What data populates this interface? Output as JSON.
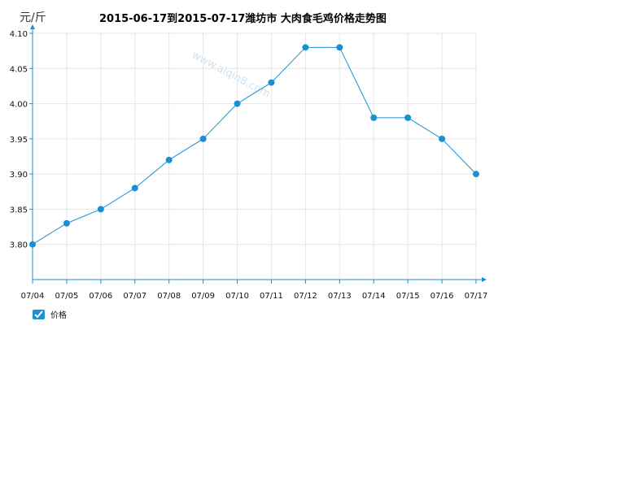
{
  "chart_data": {
    "type": "line",
    "title": "2015-06-17到2015-07-17潍坊市  大肉食毛鸡价格走势图",
    "ylabel": "元/斤",
    "xlabel": "",
    "categories": [
      "07/04",
      "07/05",
      "07/06",
      "07/07",
      "07/08",
      "07/09",
      "07/10",
      "07/11",
      "07/12",
      "07/13",
      "07/14",
      "07/15",
      "07/16",
      "07/17"
    ],
    "series": [
      {
        "name": "价格",
        "values": [
          3.8,
          3.83,
          3.85,
          3.88,
          3.92,
          3.95,
          4.0,
          4.03,
          4.08,
          4.08,
          3.98,
          3.98,
          3.95,
          3.9
        ]
      }
    ],
    "yticks": [
      "3.80",
      "3.85",
      "3.90",
      "3.95",
      "4.00",
      "4.05",
      "4.10"
    ],
    "ylim": [
      3.75,
      4.1
    ],
    "grid": true,
    "legend_position": "bottom-left",
    "colors": {
      "line": "#1b8fd2",
      "axis": "#1b8fd2",
      "grid": "#e6e6e6"
    }
  },
  "watermark": "www.aiqin8.com"
}
